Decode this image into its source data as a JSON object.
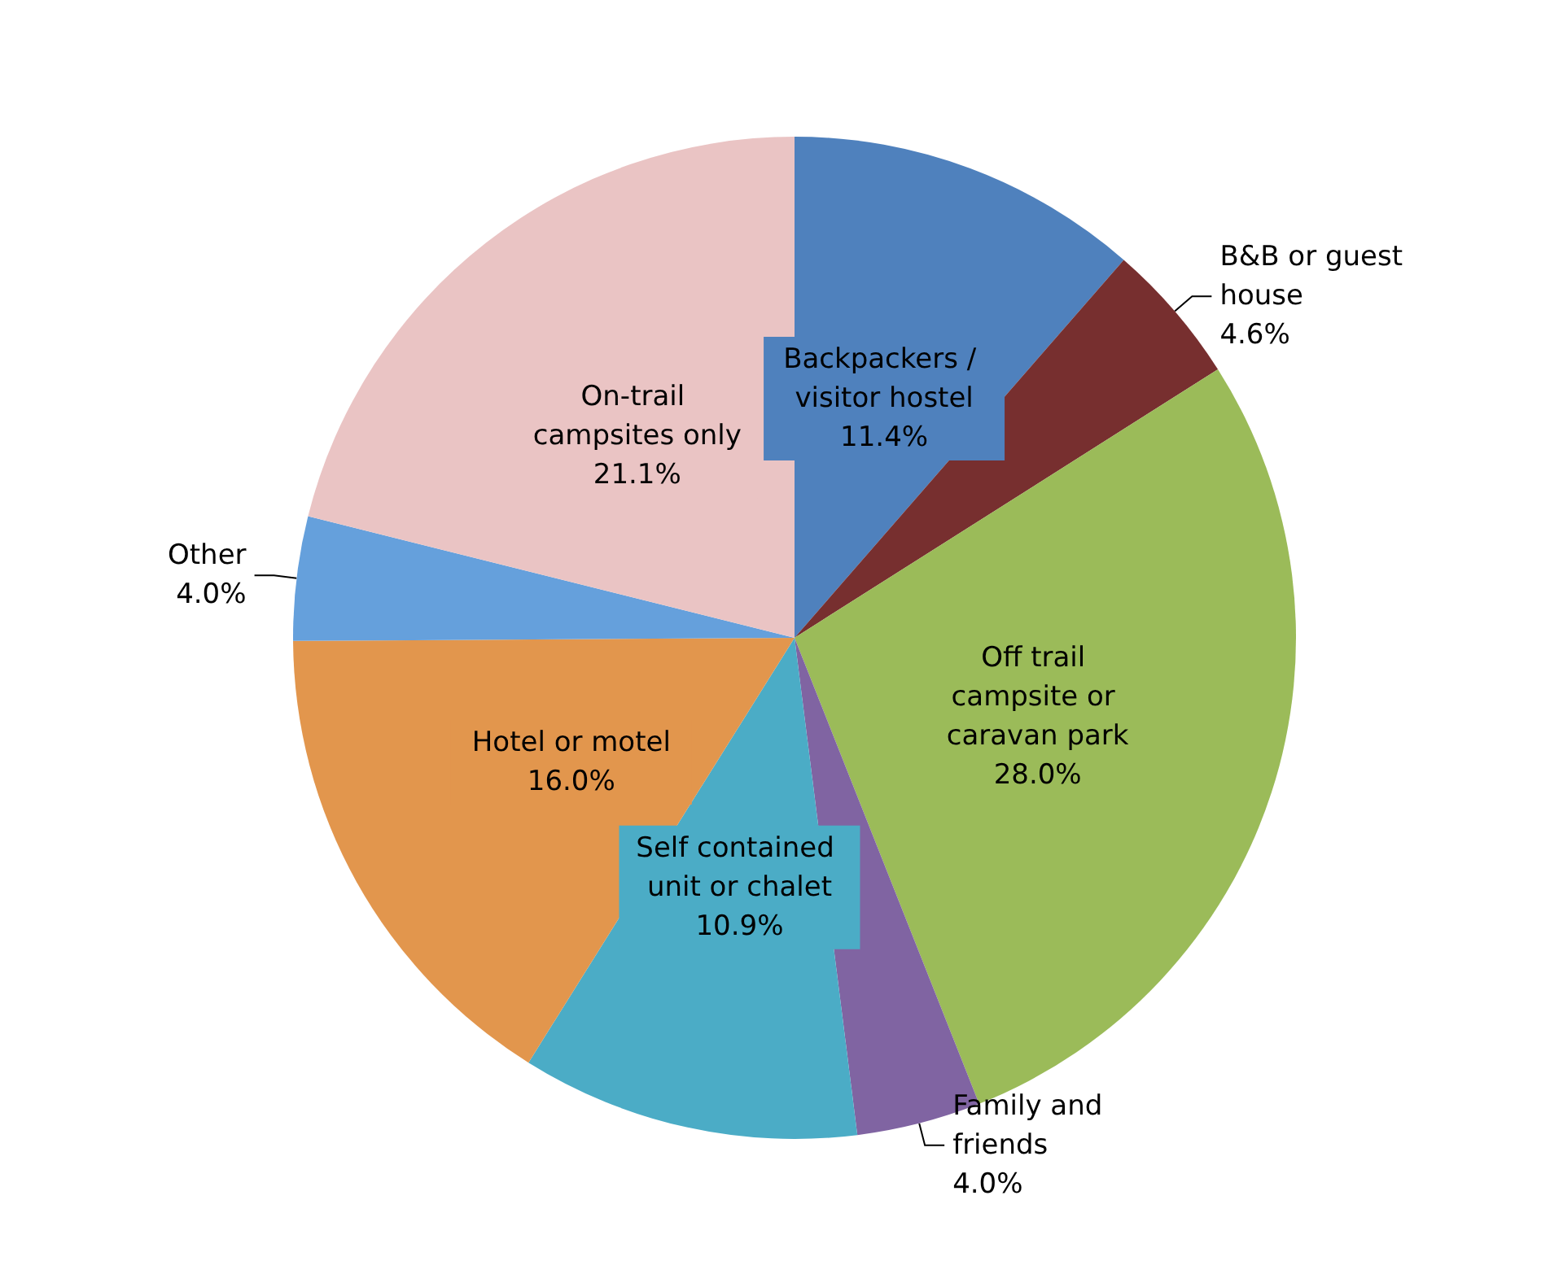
{
  "chart_data": {
    "type": "pie",
    "categories": [
      "Backpackers / visitor hostel",
      "B&B or guest house",
      "Off trail campsite or caravan park",
      "Family and friends",
      "Self contained unit or chalet",
      "Hotel or motel",
      "Other",
      "On-trail campsites only"
    ],
    "values": [
      11.4,
      4.6,
      28.0,
      4.0,
      10.9,
      16.0,
      4.0,
      21.1
    ],
    "value_labels": [
      "11.4%",
      "4.6%",
      "28.0%",
      "4.0%",
      "10.9%",
      "16.0%",
      "4.0%",
      "21.1%"
    ],
    "colors": [
      "#4f81bd",
      "#772f2f",
      "#9bbb59",
      "#8064a2",
      "#4bacc6",
      "#e2964d",
      "#65a0dc",
      "#eac4c4"
    ],
    "legend": false
  }
}
